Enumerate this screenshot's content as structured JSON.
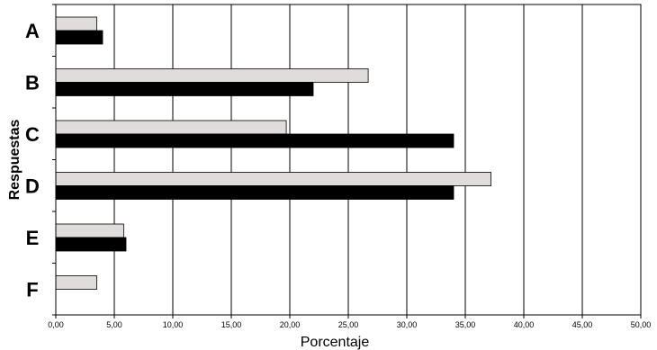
{
  "chart_data": {
    "type": "bar",
    "orientation": "horizontal",
    "categories": [
      "A",
      "B",
      "C",
      "D",
      "E",
      "F"
    ],
    "series": [
      {
        "values": [
          3.5,
          26.7,
          19.7,
          37.2,
          5.8,
          3.5
        ],
        "color": "#e0dcdc"
      },
      {
        "values": [
          4.0,
          22.0,
          34.0,
          34.0,
          6.0,
          0.0
        ],
        "color": "#000000"
      }
    ],
    "title": "",
    "xlabel": "Porcentaje",
    "ylabel": "Respuestas",
    "xlim": [
      0,
      50
    ],
    "xticks": [
      0,
      5,
      10,
      15,
      20,
      25,
      30,
      35,
      40,
      45,
      50
    ],
    "xtick_labels": [
      "0,00",
      "5,00",
      "10,00",
      "15,00",
      "20,00",
      "25,00",
      "30,00",
      "35,00",
      "40,00",
      "45,00",
      "50,00"
    ],
    "grid": "vertical",
    "legend": "none"
  }
}
